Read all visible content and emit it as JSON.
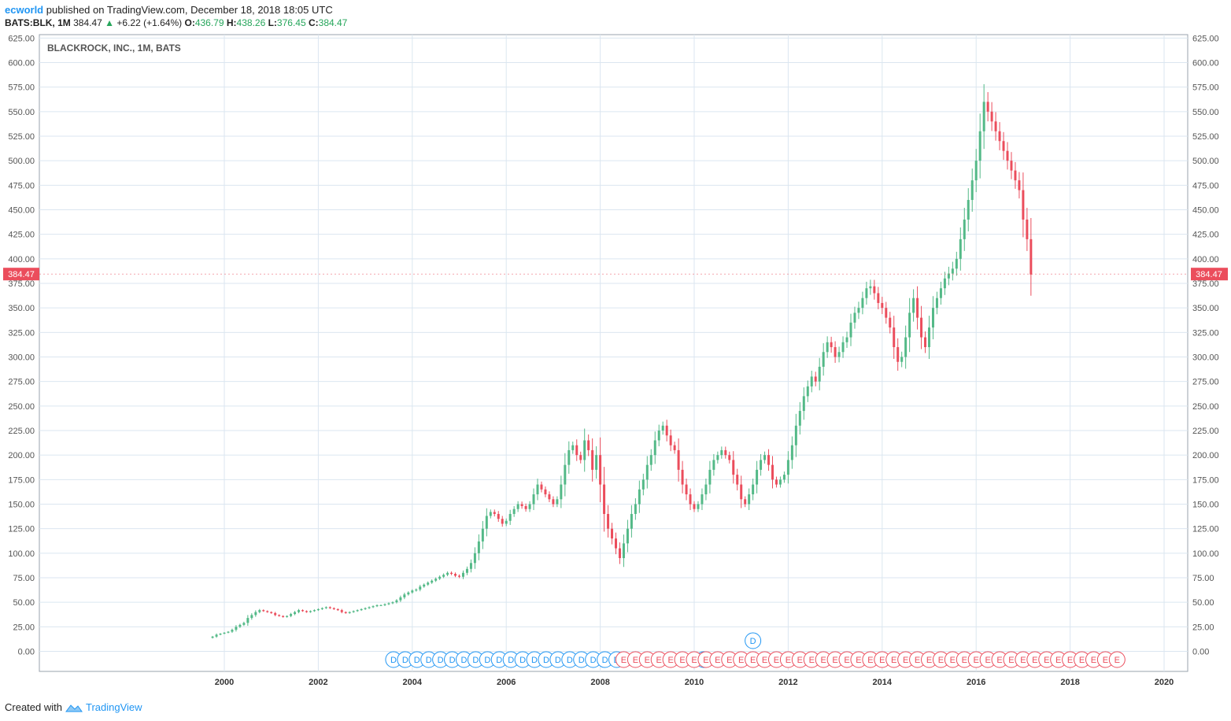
{
  "header": {
    "author": "ecworld",
    "published": "published on TradingView.com, December 18, 2018 18:05 UTC",
    "symbol": "BATS:BLK, 1M",
    "last": "384.47",
    "change": "+6.22 (+1.64%)",
    "open_label": "O:",
    "open": "436.79",
    "high_label": "H:",
    "high": "438.26",
    "low_label": "L:",
    "low": "376.45",
    "close_label": "C:",
    "close": "384.47"
  },
  "footer": {
    "created": "Created with",
    "brand": "TradingView"
  },
  "colors": {
    "up": "#53b987",
    "down": "#eb4d5c",
    "grid": "#dbe6f0",
    "accent": "#2196f3",
    "price_tag": "#eb4d5c"
  },
  "chart_data": {
    "type": "candlestick",
    "title": "BLACKROCK, INC., 1M, BATS",
    "interval": "1M",
    "y_ticks": [
      "0.00",
      "25.00",
      "50.00",
      "75.00",
      "100.00",
      "125.00",
      "150.00",
      "175.00",
      "200.00",
      "225.00",
      "250.00",
      "275.00",
      "300.00",
      "325.00",
      "350.00",
      "375.00",
      "400.00",
      "425.00",
      "450.00",
      "475.00",
      "500.00",
      "525.00",
      "550.00",
      "575.00",
      "600.00",
      "625.00"
    ],
    "ylim": [
      -20,
      625
    ],
    "x_ticks": [
      "2000",
      "2002",
      "2004",
      "2006",
      "2008",
      "2010",
      "2012",
      "2014",
      "2016",
      "2018",
      "2020"
    ],
    "xlim": [
      1999.0,
      2020.6
    ],
    "last_price_label": "384.47",
    "last_price": 384.47,
    "grid": true,
    "close_series": {
      "start": 1999.75,
      "step_months": 1,
      "values": [
        15,
        17,
        18,
        19,
        20,
        22,
        25,
        27,
        29,
        34,
        37,
        40,
        42,
        41,
        40,
        39,
        37,
        36,
        35,
        36,
        38,
        40,
        42,
        41,
        40,
        41,
        42,
        43,
        44,
        45,
        44,
        43,
        42,
        40,
        39,
        40,
        41,
        42,
        43,
        44,
        45,
        46,
        47,
        47,
        48,
        49,
        50,
        52,
        55,
        58,
        60,
        62,
        63,
        66,
        68,
        70,
        72,
        74,
        76,
        78,
        80,
        79,
        77,
        76,
        80,
        84,
        90,
        100,
        112,
        125,
        138,
        142,
        140,
        135,
        130,
        133,
        140,
        145,
        150,
        148,
        145,
        150,
        160,
        170,
        165,
        160,
        155,
        150,
        155,
        170,
        190,
        205,
        210,
        200,
        195,
        215,
        205,
        185,
        200,
        170,
        140,
        125,
        115,
        105,
        95,
        110,
        125,
        140,
        150,
        165,
        175,
        190,
        200,
        215,
        225,
        230,
        220,
        210,
        205,
        185,
        170,
        160,
        150,
        145,
        150,
        160,
        170,
        185,
        195,
        200,
        205,
        200,
        195,
        180,
        170,
        155,
        150,
        160,
        170,
        185,
        195,
        200,
        190,
        175,
        170,
        175,
        180,
        195,
        210,
        230,
        245,
        260,
        270,
        280,
        275,
        290,
        305,
        315,
        310,
        300,
        305,
        315,
        320,
        335,
        345,
        350,
        360,
        370,
        372,
        365,
        355,
        350,
        340,
        330,
        310,
        295,
        300,
        320,
        345,
        360,
        340,
        320,
        310,
        330,
        350,
        360,
        370,
        380,
        385,
        390,
        400,
        420,
        440,
        460,
        480,
        500,
        530,
        560,
        550,
        540,
        530,
        520,
        510,
        500,
        490,
        480,
        470,
        440,
        420,
        384
      ]
    },
    "event_markers": {
      "dividends": [
        2003.6,
        2003.85,
        2004.1,
        2004.35,
        2004.6,
        2004.85,
        2005.1,
        2005.35,
        2005.6,
        2005.85,
        2006.1,
        2006.35,
        2006.6,
        2006.85,
        2007.1,
        2007.35,
        2007.6,
        2007.85,
        2008.1,
        2008.35,
        2010.2,
        2011.25
      ],
      "dividend_label": "D",
      "earnings": [
        2008.5,
        2008.75,
        2009.0,
        2009.25,
        2009.5,
        2009.75,
        2010.0,
        2010.25,
        2010.5,
        2010.75,
        2011.0,
        2011.25,
        2011.5,
        2011.75,
        2012.0,
        2012.25,
        2012.5,
        2012.75,
        2013.0,
        2013.25,
        2013.5,
        2013.75,
        2014.0,
        2014.25,
        2014.5,
        2014.75,
        2015.0,
        2015.25,
        2015.5,
        2015.75,
        2016.0,
        2016.25,
        2016.5,
        2016.75,
        2017.0,
        2017.25,
        2017.5,
        2017.75,
        2018.0,
        2018.25,
        2018.5,
        2018.75,
        2019.0
      ],
      "earnings_label": "E"
    }
  }
}
